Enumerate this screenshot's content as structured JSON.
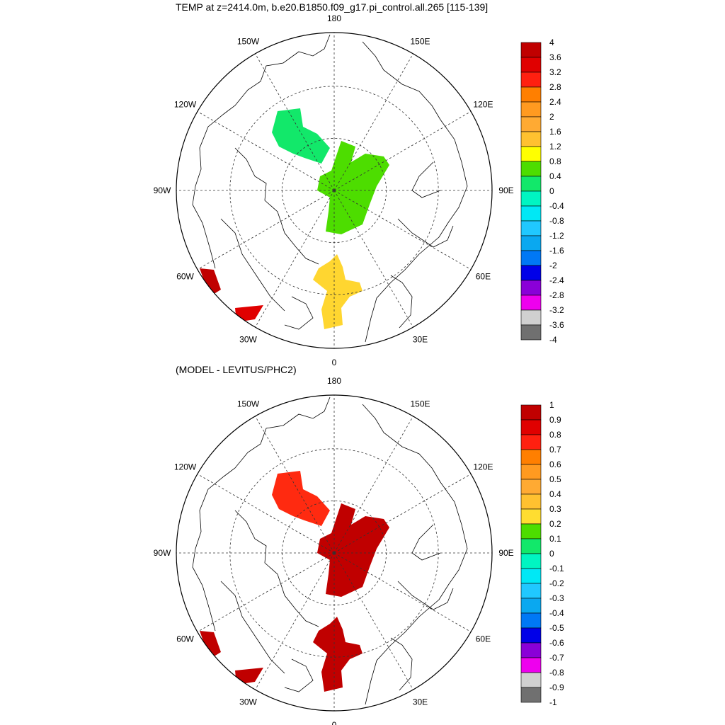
{
  "panels": [
    {
      "title": "TEMP at z=2414.0m, b.e20.B1850.f09_g17.pi_control.all.265 [115-139]",
      "longitude_labels": [
        "180",
        "150E",
        "120E",
        "90E",
        "60E",
        "30E",
        "0",
        "30W",
        "60W",
        "90W",
        "120W",
        "150W"
      ],
      "colorbar": {
        "labels": [
          "4",
          "3.6",
          "3.2",
          "2.8",
          "2.4",
          "2",
          "1.6",
          "1.2",
          "0.8",
          "0.4",
          "0",
          "-0.4",
          "-0.8",
          "-1.2",
          "-1.6",
          "-2",
          "-2.4",
          "-2.8",
          "-3.2",
          "-3.6",
          "-4"
        ],
        "colors": [
          "#c00000",
          "#e00000",
          "#ff2010",
          "#ff7f00",
          "#ff9a20",
          "#ffaa33",
          "#ffc130",
          "#ffff00",
          "#4ddd00",
          "#12e86a",
          "#00f5c2",
          "#00e8f5",
          "#20c8ff",
          "#0aa8f0",
          "#0078f5",
          "#0000e8",
          "#8a00d8",
          "#ee00ee",
          "#d0d0d0",
          "#707070"
        ]
      },
      "regions": [
        {
          "name": "canada-basin-blob",
          "color": "#12e86a"
        },
        {
          "name": "eurasian-basin-blob",
          "color": "#4ddd00"
        },
        {
          "name": "greenland-sea-blob",
          "color": "#ffd630"
        },
        {
          "name": "labrador-blob",
          "color": "#c00000"
        },
        {
          "name": "atlantic-blob",
          "color": "#e00000"
        }
      ]
    },
    {
      "title": "(MODEL - LEVITUS/PHC2)",
      "longitude_labels": [
        "180",
        "150E",
        "120E",
        "90E",
        "60E",
        "30E",
        "0",
        "30W",
        "60W",
        "90W",
        "120W",
        "150W"
      ],
      "colorbar": {
        "labels": [
          "1",
          "0.9",
          "0.8",
          "0.7",
          "0.6",
          "0.5",
          "0.4",
          "0.3",
          "0.2",
          "0.1",
          "0",
          "-0.1",
          "-0.2",
          "-0.3",
          "-0.4",
          "-0.5",
          "-0.6",
          "-0.7",
          "-0.8",
          "-0.9",
          "-1"
        ],
        "colors": [
          "#c00000",
          "#e00000",
          "#ff2010",
          "#ff7f00",
          "#ff9a20",
          "#ffaa33",
          "#ffc130",
          "#ffdd30",
          "#4ddd00",
          "#12e86a",
          "#00f5c2",
          "#00e8f5",
          "#20c8ff",
          "#0aa8f0",
          "#0078f5",
          "#0000e8",
          "#8a00d8",
          "#ee00ee",
          "#d0d0d0",
          "#707070"
        ]
      },
      "regions": [
        {
          "name": "canada-basin-blob",
          "color": "#ff2a10"
        },
        {
          "name": "eurasian-basin-blob",
          "color": "#c00000"
        },
        {
          "name": "greenland-sea-blob",
          "color": "#c00000"
        },
        {
          "name": "labrador-blob",
          "color": "#c00000"
        },
        {
          "name": "atlantic-blob",
          "color": "#c00000"
        }
      ]
    }
  ]
}
